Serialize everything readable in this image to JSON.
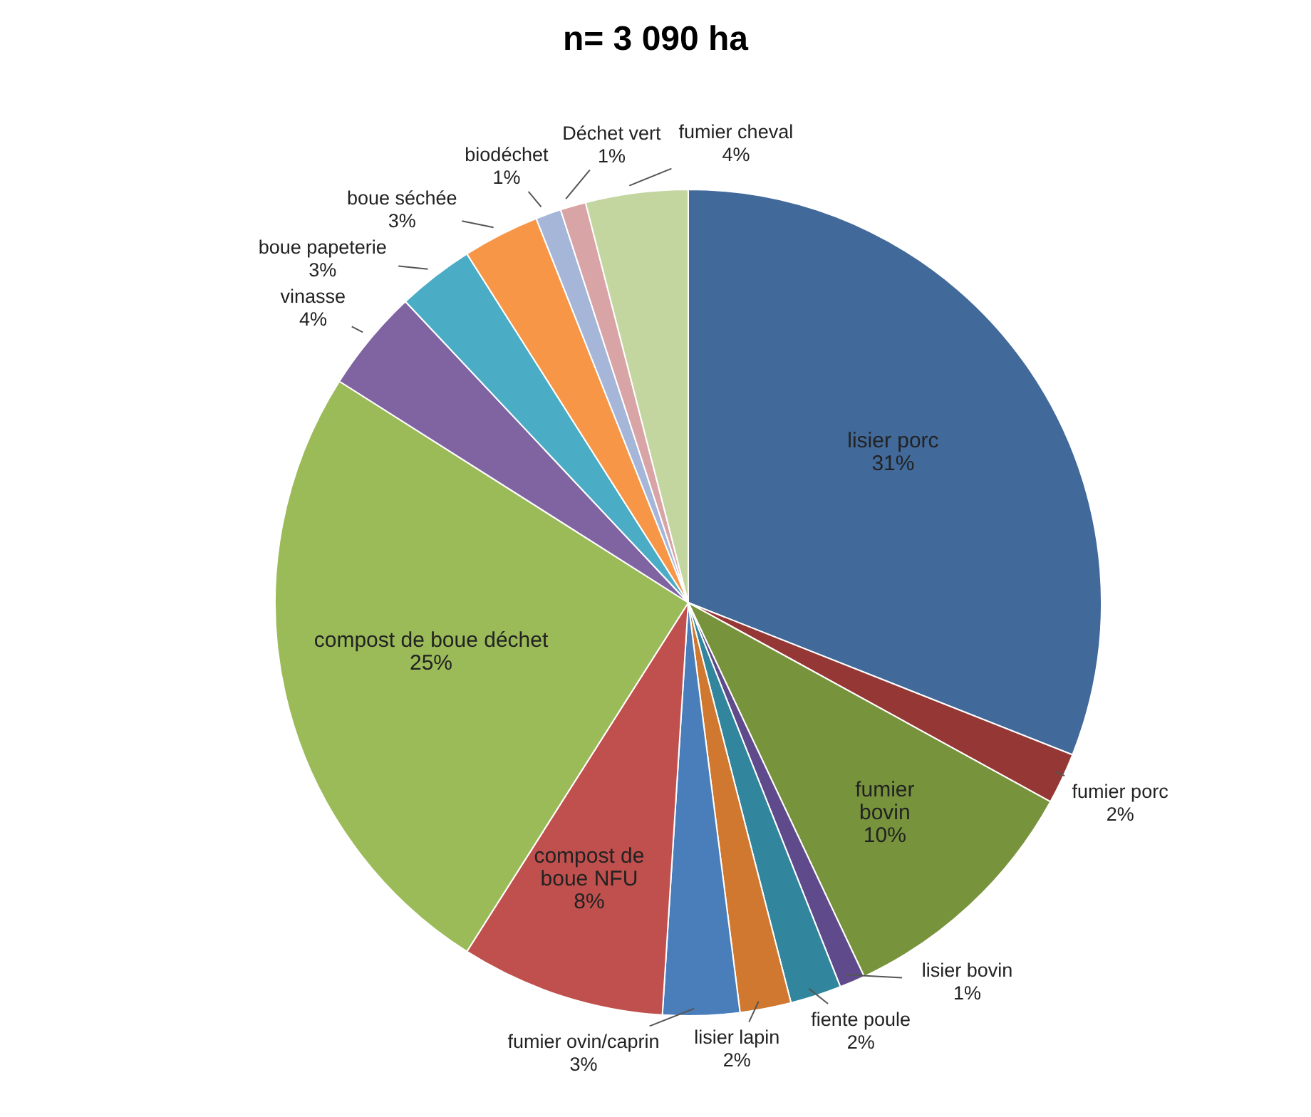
{
  "chart_data": {
    "type": "pie",
    "title": "n= 3 090 ha",
    "legend": false,
    "categories": [
      "lisier porc",
      "fumier porc",
      "fumier bovin",
      "lisier bovin",
      "fiente poule",
      "lisier lapin",
      "fumier ovin/caprin",
      "compost de boue NFU",
      "compost de boue déchet",
      "vinasse",
      "boue papeterie",
      "boue séchée",
      "biodéchet",
      "Déchet vert",
      "fumier cheval"
    ],
    "values": [
      31,
      2,
      10,
      1,
      2,
      2,
      3,
      8,
      25,
      4,
      3,
      3,
      1,
      1,
      4
    ],
    "value_labels": [
      "31%",
      "2%",
      "10%",
      "1%",
      "2%",
      "2%",
      "3%",
      "8%",
      "25%",
      "4%",
      "3%",
      "3%",
      "1%",
      "1%",
      "4%"
    ],
    "colors": [
      "#41699a",
      "#953735",
      "#77933c",
      "#5f4b8b",
      "#31859c",
      "#d0782f",
      "#4a7ebb",
      "#c0504d",
      "#9bbb59",
      "#8064a2",
      "#4bacc6",
      "#f79646",
      "#a5b6d9",
      "#d9a4a6",
      "#c4d6a0"
    ]
  }
}
